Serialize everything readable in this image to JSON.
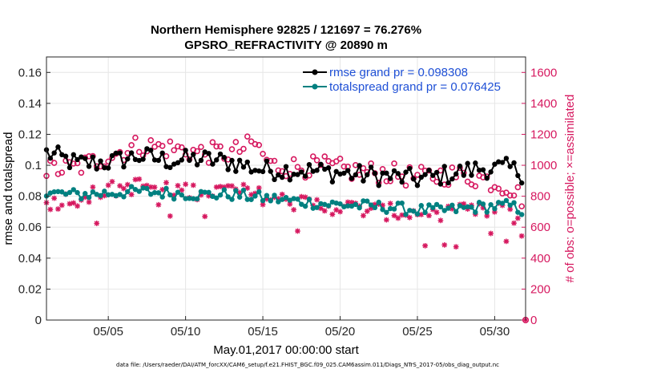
{
  "colors": {
    "rmse": "#000000",
    "spread": "#008080",
    "obs": "#d6185f",
    "legend_text": "#1f50d6",
    "grid": "#e6e6e6"
  },
  "chart_data": {
    "type": "line",
    "title": "Northern Hemisphere 92825 / 121697 = 76.276%",
    "subtitle": "GPSRO_REFRACTIVITY @ 20890 m",
    "xlabel": "May.01,2017 00:00:00 start",
    "ylabel": "rmse and totalspread",
    "y2label": "# of obs: o=possible; ×=assimilated",
    "xlim": [
      1,
      32
    ],
    "ylim": [
      0,
      0.17
    ],
    "y2lim": [
      0,
      1700
    ],
    "x_tick_values": [
      5,
      10,
      15,
      20,
      25,
      30
    ],
    "x_tick_labels": [
      "05/05",
      "05/10",
      "05/15",
      "05/20",
      "05/25",
      "05/30"
    ],
    "y_tick_values": [
      0,
      0.02,
      0.04,
      0.06,
      0.08,
      0.1,
      0.12,
      0.14,
      0.16
    ],
    "y_tick_labels": [
      "0",
      "0.02",
      "0.04",
      "0.06",
      "0.08",
      "0.1",
      "0.12",
      "0.14",
      "0.16"
    ],
    "y2_tick_values": [
      0,
      200,
      400,
      600,
      800,
      1000,
      1200,
      1400,
      1600
    ],
    "y2_tick_labels": [
      "0",
      "200",
      "400",
      "600",
      "800",
      "1000",
      "1200",
      "1400",
      "1600"
    ],
    "legend": [
      {
        "name": "rmse grand pr = 0.098308",
        "series": "rmse"
      },
      {
        "name": "totalspread grand pr = 0.076425",
        "series": "spread"
      }
    ],
    "rmse_anchors": [
      [
        1.0,
        0.108
      ],
      [
        3.0,
        0.101
      ],
      [
        5.0,
        0.102
      ],
      [
        7.0,
        0.106
      ],
      [
        9.0,
        0.103
      ],
      [
        11.0,
        0.104
      ],
      [
        13.0,
        0.102
      ],
      [
        15.0,
        0.097
      ],
      [
        17.0,
        0.097
      ],
      [
        19.0,
        0.096
      ],
      [
        21.0,
        0.094
      ],
      [
        23.0,
        0.093
      ],
      [
        25.0,
        0.091
      ],
      [
        27.0,
        0.094
      ],
      [
        29.0,
        0.098
      ],
      [
        31.0,
        0.098
      ],
      [
        31.7,
        0.095
      ]
    ],
    "spread_anchors": [
      [
        1.0,
        0.082
      ],
      [
        3.0,
        0.081
      ],
      [
        5.0,
        0.082
      ],
      [
        7.0,
        0.083
      ],
      [
        9.0,
        0.082
      ],
      [
        11.0,
        0.081
      ],
      [
        13.0,
        0.081
      ],
      [
        15.0,
        0.079
      ],
      [
        17.0,
        0.077
      ],
      [
        19.0,
        0.075
      ],
      [
        21.0,
        0.074
      ],
      [
        23.0,
        0.073
      ],
      [
        25.0,
        0.071
      ],
      [
        27.0,
        0.071
      ],
      [
        29.0,
        0.073
      ],
      [
        31.0,
        0.074
      ],
      [
        31.7,
        0.071
      ]
    ],
    "possible_anchors": [
      [
        1.0,
        970
      ],
      [
        3.0,
        985
      ],
      [
        5.0,
        1060
      ],
      [
        7.0,
        1130
      ],
      [
        9.0,
        1110
      ],
      [
        11.0,
        1080
      ],
      [
        13.0,
        1080
      ],
      [
        14.5,
        1140
      ],
      [
        15.5,
        1000
      ],
      [
        17.0,
        990
      ],
      [
        19.0,
        990
      ],
      [
        21.0,
        960
      ],
      [
        23.0,
        950
      ],
      [
        25.0,
        920
      ],
      [
        27.0,
        940
      ],
      [
        29.0,
        920
      ],
      [
        31.0,
        860
      ],
      [
        31.7,
        790
      ]
    ],
    "assimilated_anchors": [
      [
        1.0,
        760
      ],
      [
        3.0,
        790
      ],
      [
        5.0,
        840
      ],
      [
        7.0,
        870
      ],
      [
        9.0,
        850
      ],
      [
        11.0,
        830
      ],
      [
        13.0,
        840
      ],
      [
        15.0,
        800
      ],
      [
        17.0,
        760
      ],
      [
        19.0,
        740
      ],
      [
        21.0,
        720
      ],
      [
        23.0,
        700
      ],
      [
        25.0,
        690
      ],
      [
        27.0,
        700
      ],
      [
        29.0,
        700
      ],
      [
        31.0,
        720
      ],
      [
        31.7,
        570
      ]
    ],
    "points_per_day": 4,
    "last_obs_value": 0
  },
  "footer": {
    "data_file": "data file: /Users/raeder/DAI/ATM_forcXX/CAM6_setup/f.e21.FHIST_BGC.f09_025.CAM6assim.011/Diags_NTrS_2017-05/obs_diag_output.nc"
  }
}
